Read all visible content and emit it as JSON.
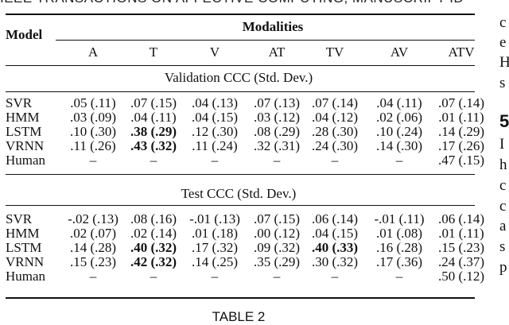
{
  "running_header": "IEEE TRANSACTIONS ON AFFECTIVE COMPUTING, MANUSCRIPT ID",
  "table": {
    "model_header": "Model",
    "group_header": "Modalities",
    "columns": [
      "A",
      "T",
      "V",
      "AT",
      "TV",
      "AV",
      "ATV"
    ],
    "sections": [
      {
        "title": "Validation CCC (Std. Dev.)",
        "rows": [
          {
            "model": "SVR",
            "cells": [
              ".05 (.11)",
              ".07 (.15)",
              ".04 (.13)",
              ".07 (.13)",
              ".07 (.14)",
              ".04 (.11)",
              ".07 (.14)"
            ],
            "bold": []
          },
          {
            "model": "HMM",
            "cells": [
              ".03 (.09)",
              ".04 (.11)",
              ".04 (.15)",
              ".03 (.12)",
              ".04 (.12)",
              ".02 (.06)",
              ".01 (.11)"
            ],
            "bold": []
          },
          {
            "model": "LSTM",
            "cells": [
              ".10 (.30)",
              ".38 (.29)",
              ".12 (.30)",
              ".08 (.29)",
              ".28 (.30)",
              ".10 (.24)",
              ".14 (.29)"
            ],
            "bold": [
              1
            ]
          },
          {
            "model": "VRNN",
            "cells": [
              ".11 (.26)",
              ".43 (.32)",
              ".11 (.24)",
              ".32 (.31)",
              ".24 (.30)",
              ".14 (.30)",
              ".17 (.26)"
            ],
            "bold": [
              1
            ]
          },
          {
            "model": "Human",
            "cells": [
              "–",
              "–",
              "–",
              "–",
              "–",
              "–",
              ".47 (.15)"
            ],
            "bold": []
          }
        ]
      },
      {
        "title": "Test CCC (Std. Dev.)",
        "rows": [
          {
            "model": "SVR",
            "cells": [
              "-.02 (.13)",
              ".08 (.16)",
              "-.01 (.13)",
              ".07 (.15)",
              ".06 (.14)",
              "-.01 (.11)",
              ".06 (.14)"
            ],
            "bold": []
          },
          {
            "model": "HMM",
            "cells": [
              ".02 (.07)",
              ".02 (.14)",
              ".01 (.18)",
              ".00 (.12)",
              ".04 (.15)",
              ".01 (.08)",
              ".01 (.11)"
            ],
            "bold": []
          },
          {
            "model": "LSTM",
            "cells": [
              ".14 (.28)",
              ".40 (.32)",
              ".17 (.32)",
              ".09 (.32)",
              ".40 (.33)",
              ".16 (.28)",
              ".15 (.23)"
            ],
            "bold": [
              1,
              4
            ]
          },
          {
            "model": "VRNN",
            "cells": [
              ".15 (.23)",
              ".42 (.32)",
              ".14 (.25)",
              ".35 (.29)",
              ".30 (.32)",
              ".17 (.36)",
              ".24 (.37)"
            ],
            "bold": [
              1
            ]
          },
          {
            "model": "Human",
            "cells": [
              "–",
              "–",
              "–",
              "–",
              "–",
              "–",
              ".50 (.12)"
            ],
            "bold": []
          }
        ]
      }
    ]
  },
  "caption": "TABLE 2",
  "side_text": [
    "c",
    "e",
    "H",
    "s",
    "5",
    "I",
    "h",
    "c",
    "c",
    "a",
    "s",
    "p"
  ]
}
